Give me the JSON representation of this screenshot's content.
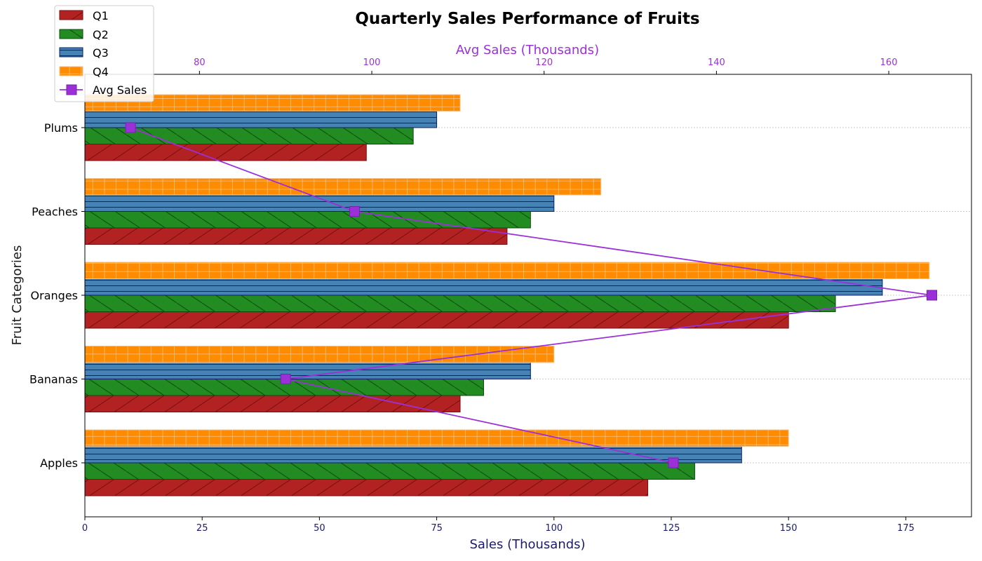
{
  "chart_data": {
    "type": "bar",
    "orientation": "horizontal",
    "title": "Quarterly Sales Performance of Fruits",
    "xlabel": "Sales (Thousands)",
    "ylabel": "Fruit Categories",
    "categories": [
      "Apples",
      "Bananas",
      "Oranges",
      "Peaches",
      "Plums"
    ],
    "xlim": [
      0,
      189
    ],
    "xticks": [
      0,
      25,
      50,
      75,
      100,
      125,
      150,
      175
    ],
    "series": [
      {
        "name": "Q1",
        "values": [
          120,
          80,
          150,
          90,
          60
        ],
        "color": "#b22222",
        "edge": "#7a0e0e",
        "hatch": "diagonal"
      },
      {
        "name": "Q2",
        "values": [
          130,
          85,
          160,
          95,
          70
        ],
        "color": "#228b22",
        "edge": "#0b4d0b",
        "hatch": "backslash"
      },
      {
        "name": "Q3",
        "values": [
          140,
          95,
          170,
          100,
          75
        ],
        "color": "#4682b4",
        "edge": "#0d1f66",
        "hatch": "horizontal"
      },
      {
        "name": "Q4",
        "values": [
          150,
          100,
          180,
          110,
          80
        ],
        "color": "#ff8c00",
        "edge": "#f3c28a",
        "hatch": "grid"
      }
    ],
    "secondary_axis": {
      "label": "Avg Sales (Thousands)",
      "xlim": [
        66.7,
        169.6
      ],
      "xticks": [
        80,
        100,
        120,
        140,
        160
      ],
      "series": {
        "name": "Avg Sales",
        "values": [
          135,
          90,
          165,
          98,
          72
        ],
        "color": "#9b30d9",
        "marker": "square"
      }
    },
    "grid": "horizontal-dotted",
    "legend_position": "top-left"
  }
}
